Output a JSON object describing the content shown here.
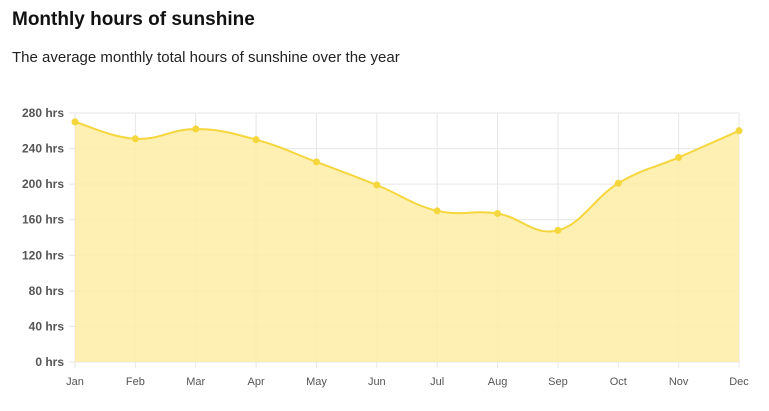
{
  "header": {
    "title": "Monthly hours of sunshine",
    "subtitle": "The average monthly total hours of sunshine over the year"
  },
  "chart_data": {
    "type": "area",
    "title": "Monthly hours of sunshine",
    "subtitle": "The average monthly total hours of sunshine over the year",
    "categories": [
      "Jan",
      "Feb",
      "Mar",
      "Apr",
      "May",
      "Jun",
      "Jul",
      "Aug",
      "Sep",
      "Oct",
      "Nov",
      "Dec"
    ],
    "series": [
      {
        "values": [
          270,
          251,
          262,
          250,
          225,
          199,
          170,
          167,
          148,
          201,
          230,
          260
        ]
      }
    ],
    "y_ticks": [
      "0 hrs",
      "40 hrs",
      "80 hrs",
      "120 hrs",
      "160 hrs",
      "200 hrs",
      "240 hrs",
      "280 hrs"
    ],
    "ylim": [
      0,
      280
    ],
    "grid": true,
    "colors": {
      "line": "#f5d63d",
      "fill": "#feeda6",
      "point": "#f5d63d",
      "grid": "#e6e6e6"
    }
  }
}
